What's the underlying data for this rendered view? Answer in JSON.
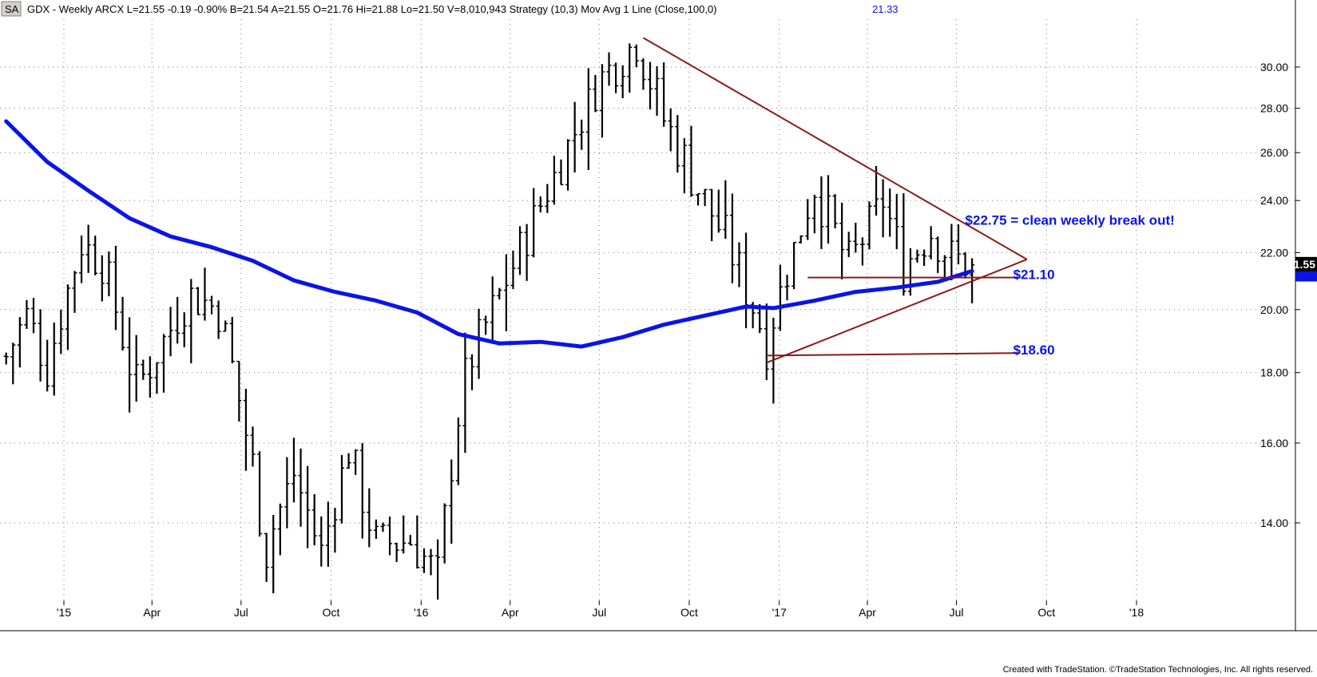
{
  "header": {
    "badge": "SA",
    "text": "GDX - Weekly ARCX  L=21.55  -0.19  -0.90%  B=21.54  A=21.55  O=21.76  Hi=21.88  Lo=21.50  V=8,010,943  Strategy (10,3)   Mov Avg 1 Line (Close,100,0)",
    "ma_value": "21.33"
  },
  "footer": "Created with TradeStation. ©TradeStation Technologies, Inc. All rights reserved.",
  "colors": {
    "price_bars": "#000000",
    "moving_average": "#0a14e6",
    "trendlines": "#8b1a1a",
    "annotation_text": "#0a14e6",
    "last_price_tag": "#000000",
    "ma_tag": "#0a14e6"
  },
  "chart_data": {
    "type": "ohlc",
    "symbol": "GDX",
    "interval": "Weekly",
    "y_scale": "log",
    "ylim": [
      12.3,
      32.5
    ],
    "y_ticks": [
      "30.00",
      "28.00",
      "26.00",
      "24.00",
      "22.00",
      "20.00",
      "18.00",
      "16.00",
      "14.00"
    ],
    "x_ticks": [
      {
        "label": "'15",
        "date": "2015-01-01"
      },
      {
        "label": "Apr",
        "date": "2015-04-01"
      },
      {
        "label": "Jul",
        "date": "2015-07-01"
      },
      {
        "label": "Oct",
        "date": "2015-10-01"
      },
      {
        "label": "'16",
        "date": "2016-01-01"
      },
      {
        "label": "Apr",
        "date": "2016-04-01"
      },
      {
        "label": "Jul",
        "date": "2016-07-01"
      },
      {
        "label": "Oct",
        "date": "2016-10-01"
      },
      {
        "label": "'17",
        "date": "2017-01-01"
      },
      {
        "label": "Apr",
        "date": "2017-04-01"
      },
      {
        "label": "Jul",
        "date": "2017-07-01"
      },
      {
        "label": "Oct",
        "date": "2017-10-01"
      },
      {
        "label": "'18",
        "date": "2018-01-01"
      }
    ],
    "price_path": [
      [
        "2014-11-03",
        18.5
      ],
      [
        "2014-11-24",
        19.8
      ],
      [
        "2014-12-15",
        18.2
      ],
      [
        "2015-01-19",
        22.3
      ],
      [
        "2015-02-09",
        21.7
      ],
      [
        "2015-03-16",
        17.5
      ],
      [
        "2015-05-11",
        20.5
      ],
      [
        "2015-06-08",
        20.0
      ],
      [
        "2015-07-27",
        13.5
      ],
      [
        "2015-08-24",
        15.2
      ],
      [
        "2015-09-21",
        13.3
      ],
      [
        "2015-10-19",
        15.8
      ],
      [
        "2015-11-16",
        13.5
      ],
      [
        "2015-12-21",
        13.6
      ],
      [
        "2016-01-18",
        12.8
      ],
      [
        "2016-02-15",
        18.0
      ],
      [
        "2016-04-04",
        21.5
      ],
      [
        "2016-05-16",
        25.0
      ],
      [
        "2016-07-04",
        29.5
      ],
      [
        "2016-08-08",
        31.3
      ],
      [
        "2016-09-05",
        27.5
      ],
      [
        "2016-10-10",
        24.5
      ],
      [
        "2016-11-07",
        22.5
      ],
      [
        "2016-12-19",
        19.0
      ],
      [
        "2017-02-06",
        24.5
      ],
      [
        "2017-03-13",
        21.5
      ],
      [
        "2017-04-17",
        24.0
      ],
      [
        "2017-05-08",
        21.5
      ],
      [
        "2017-06-05",
        22.8
      ],
      [
        "2017-06-26",
        21.8
      ],
      [
        "2017-07-17",
        21.55
      ]
    ],
    "last_price": 21.55,
    "moving_average": {
      "name": "Mov Avg 1 Line (Close,100,0)",
      "value": 21.33,
      "points": [
        [
          "2014-11-03",
          27.4
        ],
        [
          "2014-12-15",
          25.6
        ],
        [
          "2015-01-26",
          24.4
        ],
        [
          "2015-03-09",
          23.3
        ],
        [
          "2015-04-20",
          22.6
        ],
        [
          "2015-06-01",
          22.2
        ],
        [
          "2015-07-13",
          21.7
        ],
        [
          "2015-08-24",
          21.0
        ],
        [
          "2015-10-05",
          20.6
        ],
        [
          "2015-11-16",
          20.3
        ],
        [
          "2015-12-28",
          19.9
        ],
        [
          "2016-02-08",
          19.2
        ],
        [
          "2016-03-21",
          18.9
        ],
        [
          "2016-05-02",
          18.95
        ],
        [
          "2016-06-13",
          18.8
        ],
        [
          "2016-07-25",
          19.1
        ],
        [
          "2016-09-05",
          19.5
        ],
        [
          "2016-10-17",
          19.8
        ],
        [
          "2016-11-28",
          20.1
        ],
        [
          "2016-12-26",
          20.05
        ],
        [
          "2017-02-06",
          20.3
        ],
        [
          "2017-03-20",
          20.6
        ],
        [
          "2017-05-01",
          20.75
        ],
        [
          "2017-06-12",
          20.95
        ],
        [
          "2017-07-17",
          21.33
        ]
      ]
    },
    "trendlines": [
      {
        "from": [
          "2016-08-15",
          31.5
        ],
        "to": [
          "2017-09-11",
          21.75
        ]
      },
      {
        "from": [
          "2016-12-19",
          18.3
        ],
        "to": [
          "2017-09-11",
          21.75
        ]
      },
      {
        "from": [
          "2017-01-30",
          21.1
        ],
        "to": [
          "2017-09-04",
          21.1
        ]
      },
      {
        "from": [
          "2016-12-19",
          18.52
        ],
        "to": [
          "2017-09-04",
          18.6
        ]
      }
    ],
    "annotations": [
      {
        "text": "$22.75 = clean weekly break out!",
        "date": "2017-07-10",
        "price": 23.05
      },
      {
        "text": "$21.10",
        "date": "2017-08-28",
        "price": 21.05
      },
      {
        "text": "$18.60",
        "date": "2017-08-28",
        "price": 18.55
      }
    ]
  }
}
